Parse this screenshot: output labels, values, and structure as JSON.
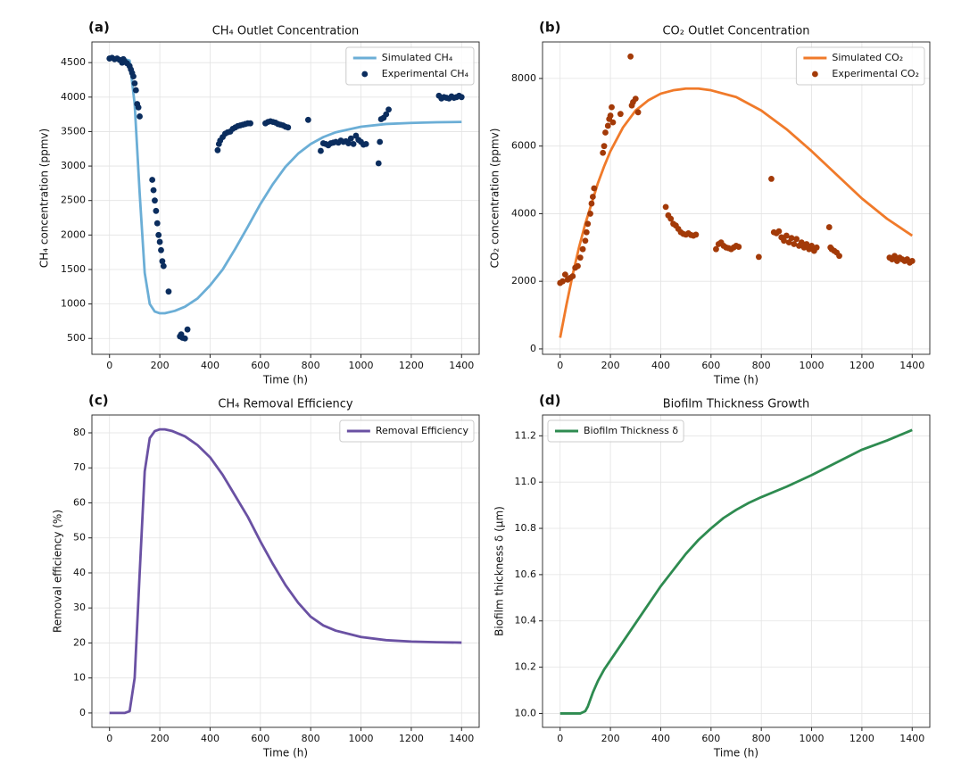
{
  "chart_data": [
    {
      "type": "line",
      "panel_label": "(a)",
      "title": "CH₄ Outlet Concentration",
      "xlabel": "Time (h)",
      "ylabel": "CH₄ concentration (ppmv)",
      "xlim": [
        -70,
        1470
      ],
      "ylim": [
        270,
        4800
      ],
      "xticks": [
        0,
        200,
        400,
        600,
        800,
        1000,
        1200,
        1400
      ],
      "yticks": [
        500,
        1000,
        1500,
        2000,
        2500,
        3000,
        3500,
        4000,
        4500
      ],
      "grid": true,
      "legend": "upper right",
      "series": [
        {
          "name": "Simulated CH₄",
          "type": "line",
          "color": "#6baed6",
          "x": [
            0,
            20,
            40,
            60,
            80,
            100,
            120,
            140,
            160,
            180,
            200,
            220,
            260,
            300,
            350,
            400,
            450,
            500,
            550,
            600,
            650,
            700,
            750,
            800,
            850,
            900,
            1000,
            1100,
            1200,
            1300,
            1400
          ],
          "values": [
            4560,
            4560,
            4555,
            4550,
            4530,
            3900,
            2600,
            1450,
            1000,
            890,
            865,
            865,
            900,
            960,
            1080,
            1270,
            1500,
            1800,
            2120,
            2450,
            2740,
            2990,
            3180,
            3320,
            3420,
            3490,
            3570,
            3610,
            3625,
            3635,
            3640
          ]
        },
        {
          "name": "Experimental CH₄",
          "type": "scatter",
          "color": "#0b2d5e",
          "x": [
            0,
            10,
            20,
            30,
            40,
            50,
            55,
            60,
            70,
            80,
            85,
            90,
            95,
            100,
            105,
            110,
            115,
            120,
            170,
            175,
            180,
            185,
            190,
            195,
            200,
            205,
            210,
            215,
            235,
            280,
            285,
            290,
            300,
            310,
            430,
            435,
            440,
            450,
            460,
            470,
            480,
            490,
            500,
            510,
            520,
            530,
            540,
            550,
            560,
            620,
            630,
            640,
            650,
            660,
            670,
            680,
            690,
            700,
            710,
            790,
            840,
            850,
            860,
            870,
            880,
            890,
            900,
            910,
            920,
            930,
            940,
            950,
            960,
            970,
            980,
            990,
            1000,
            1010,
            1020,
            1070,
            1075,
            1080,
            1090,
            1100,
            1110,
            1310,
            1320,
            1330,
            1340,
            1350,
            1360,
            1370,
            1380,
            1390,
            1400
          ],
          "values": [
            4560,
            4570,
            4550,
            4560,
            4540,
            4500,
            4550,
            4520,
            4490,
            4450,
            4400,
            4350,
            4300,
            4200,
            4100,
            3900,
            3850,
            3720,
            2800,
            2650,
            2500,
            2350,
            2170,
            2000,
            1900,
            1780,
            1620,
            1550,
            1180,
            530,
            560,
            510,
            500,
            630,
            3230,
            3320,
            3370,
            3420,
            3470,
            3490,
            3500,
            3540,
            3560,
            3580,
            3590,
            3600,
            3610,
            3620,
            3620,
            3620,
            3640,
            3650,
            3640,
            3630,
            3610,
            3600,
            3590,
            3570,
            3560,
            3670,
            3220,
            3330,
            3320,
            3300,
            3330,
            3340,
            3350,
            3340,
            3370,
            3350,
            3360,
            3330,
            3400,
            3320,
            3440,
            3380,
            3350,
            3310,
            3320,
            3040,
            3350,
            3680,
            3700,
            3750,
            3820,
            4020,
            3980,
            4000,
            3990,
            3980,
            4010,
            3990,
            4000,
            4020,
            4000
          ]
        }
      ]
    },
    {
      "type": "line",
      "panel_label": "(b)",
      "title": "CO₂ Outlet Concentration",
      "xlabel": "Time (h)",
      "ylabel": "CO₂ concentration (ppmv)",
      "xlim": [
        -70,
        1470
      ],
      "ylim": [
        -160,
        9080
      ],
      "xticks": [
        0,
        200,
        400,
        600,
        800,
        1000,
        1200,
        1400
      ],
      "yticks": [
        0,
        2000,
        4000,
        6000,
        8000
      ],
      "grid": true,
      "legend": "upper right",
      "series": [
        {
          "name": "Simulated CO₂",
          "type": "line",
          "color": "#f07a2a",
          "x": [
            0,
            25,
            50,
            75,
            100,
            125,
            150,
            175,
            200,
            250,
            300,
            350,
            400,
            450,
            500,
            550,
            600,
            700,
            800,
            900,
            1000,
            1100,
            1200,
            1300,
            1400
          ],
          "values": [
            330,
            1300,
            2200,
            3000,
            3700,
            4300,
            4900,
            5400,
            5850,
            6550,
            7050,
            7350,
            7550,
            7650,
            7700,
            7700,
            7650,
            7450,
            7050,
            6500,
            5850,
            5150,
            4450,
            3850,
            3350
          ]
        },
        {
          "name": "Experimental CO₂",
          "type": "scatter",
          "color": "#a33a08",
          "x": [
            0,
            10,
            20,
            30,
            40,
            50,
            60,
            70,
            80,
            90,
            100,
            105,
            110,
            120,
            125,
            130,
            135,
            170,
            175,
            180,
            190,
            195,
            200,
            205,
            210,
            240,
            280,
            285,
            290,
            300,
            310,
            420,
            430,
            440,
            450,
            460,
            470,
            480,
            490,
            500,
            510,
            520,
            530,
            540,
            620,
            630,
            640,
            650,
            660,
            670,
            680,
            690,
            700,
            710,
            790,
            840,
            850,
            860,
            870,
            880,
            890,
            900,
            910,
            920,
            930,
            940,
            950,
            960,
            970,
            980,
            990,
            1000,
            1010,
            1020,
            1070,
            1075,
            1080,
            1090,
            1100,
            1110,
            1310,
            1320,
            1330,
            1340,
            1350,
            1360,
            1370,
            1380,
            1390,
            1400
          ],
          "values": [
            1950,
            2000,
            2200,
            2050,
            2100,
            2150,
            2400,
            2450,
            2700,
            2950,
            3200,
            3450,
            3700,
            4000,
            4300,
            4500,
            4750,
            5800,
            6000,
            6400,
            6600,
            6800,
            6900,
            7150,
            6700,
            6950,
            8650,
            7200,
            7300,
            7400,
            7000,
            4200,
            3950,
            3850,
            3700,
            3650,
            3550,
            3450,
            3400,
            3380,
            3420,
            3370,
            3350,
            3380,
            2950,
            3100,
            3150,
            3050,
            3000,
            2980,
            2950,
            3000,
            3050,
            3020,
            2720,
            5030,
            3450,
            3420,
            3480,
            3300,
            3200,
            3350,
            3150,
            3280,
            3100,
            3250,
            3050,
            3150,
            3000,
            3100,
            2950,
            3050,
            2900,
            3000,
            3600,
            3000,
            2950,
            2900,
            2850,
            2750,
            2700,
            2650,
            2750,
            2600,
            2700,
            2650,
            2600,
            2650,
            2550,
            2600
          ]
        }
      ]
    },
    {
      "type": "line",
      "panel_label": "(c)",
      "title": "CH₄ Removal Efficiency",
      "xlabel": "Time (h)",
      "ylabel": "Removal efficiency (%)",
      "xlim": [
        -70,
        1470
      ],
      "ylim": [
        -4.1,
        85.1
      ],
      "xticks": [
        0,
        200,
        400,
        600,
        800,
        1000,
        1200,
        1400
      ],
      "yticks": [
        0,
        10,
        20,
        30,
        40,
        50,
        60,
        70,
        80
      ],
      "grid": true,
      "legend": "upper right",
      "series": [
        {
          "name": "Removal Efficiency",
          "type": "line",
          "color": "#6a51a3",
          "x": [
            0,
            60,
            80,
            100,
            120,
            140,
            160,
            180,
            200,
            220,
            250,
            300,
            350,
            400,
            450,
            500,
            550,
            600,
            650,
            700,
            750,
            800,
            850,
            900,
            1000,
            1100,
            1200,
            1300,
            1400
          ],
          "values": [
            0,
            0,
            0.5,
            10,
            40,
            69,
            78.5,
            80.5,
            81,
            81,
            80.5,
            79,
            76.5,
            73,
            68,
            62,
            56,
            49,
            42.5,
            36.5,
            31.5,
            27.5,
            25,
            23.5,
            21.7,
            20.8,
            20.4,
            20.2,
            20.1
          ]
        }
      ]
    },
    {
      "type": "line",
      "panel_label": "(d)",
      "title": "Biofilm Thickness Growth",
      "xlabel": "Time (h)",
      "ylabel": "Biofilm thickness δ (μm)",
      "xlim": [
        -70,
        1470
      ],
      "ylim": [
        9.94,
        11.29
      ],
      "xticks": [
        0,
        200,
        400,
        600,
        800,
        1000,
        1200,
        1400
      ],
      "yticks": [
        {
          "value": 10,
          "label": "10.0"
        },
        10.2,
        10.4,
        10.6,
        10.8,
        {
          "value": 11,
          "label": "11.0"
        },
        11.2
      ],
      "grid": true,
      "legend": "upper left",
      "series": [
        {
          "name": "Biofilm Thickness δ",
          "type": "line",
          "color": "#2e8b50",
          "x": [
            0,
            60,
            80,
            100,
            110,
            120,
            130,
            150,
            175,
            200,
            250,
            300,
            350,
            400,
            450,
            500,
            550,
            600,
            650,
            700,
            750,
            800,
            900,
            1000,
            1100,
            1200,
            1300,
            1400
          ],
          "values": [
            10.0,
            10.0,
            10.0,
            10.01,
            10.03,
            10.06,
            10.09,
            10.14,
            10.19,
            10.23,
            10.31,
            10.39,
            10.47,
            10.55,
            10.62,
            10.69,
            10.75,
            10.8,
            10.845,
            10.88,
            10.91,
            10.935,
            10.98,
            11.03,
            11.085,
            11.14,
            11.18,
            11.225
          ]
        }
      ]
    }
  ]
}
